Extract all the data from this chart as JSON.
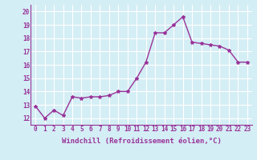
{
  "x": [
    0,
    1,
    2,
    3,
    4,
    5,
    6,
    7,
    8,
    9,
    10,
    11,
    12,
    13,
    14,
    15,
    16,
    17,
    18,
    19,
    20,
    21,
    22,
    23
  ],
  "y": [
    12.9,
    12.0,
    12.6,
    12.2,
    13.6,
    13.5,
    13.6,
    13.6,
    13.7,
    14.0,
    14.0,
    15.0,
    16.2,
    18.4,
    18.4,
    19.0,
    19.6,
    17.7,
    17.6,
    17.5,
    17.4,
    17.1,
    16.2,
    16.2
  ],
  "line_color": "#993399",
  "marker": "*",
  "marker_size": 3,
  "bg_color": "#d4eef5",
  "grid_color": "#ffffff",
  "xlabel": "Windchill (Refroidissement éolien,°C)",
  "ylim": [
    11.5,
    20.5
  ],
  "xlim": [
    -0.5,
    23.5
  ],
  "yticks": [
    12,
    13,
    14,
    15,
    16,
    17,
    18,
    19,
    20
  ],
  "xticks": [
    0,
    1,
    2,
    3,
    4,
    5,
    6,
    7,
    8,
    9,
    10,
    11,
    12,
    13,
    14,
    15,
    16,
    17,
    18,
    19,
    20,
    21,
    22,
    23
  ],
  "tick_fontsize": 5.5,
  "xlabel_fontsize": 6.5,
  "line_width": 1.0,
  "tick_color": "#993399"
}
